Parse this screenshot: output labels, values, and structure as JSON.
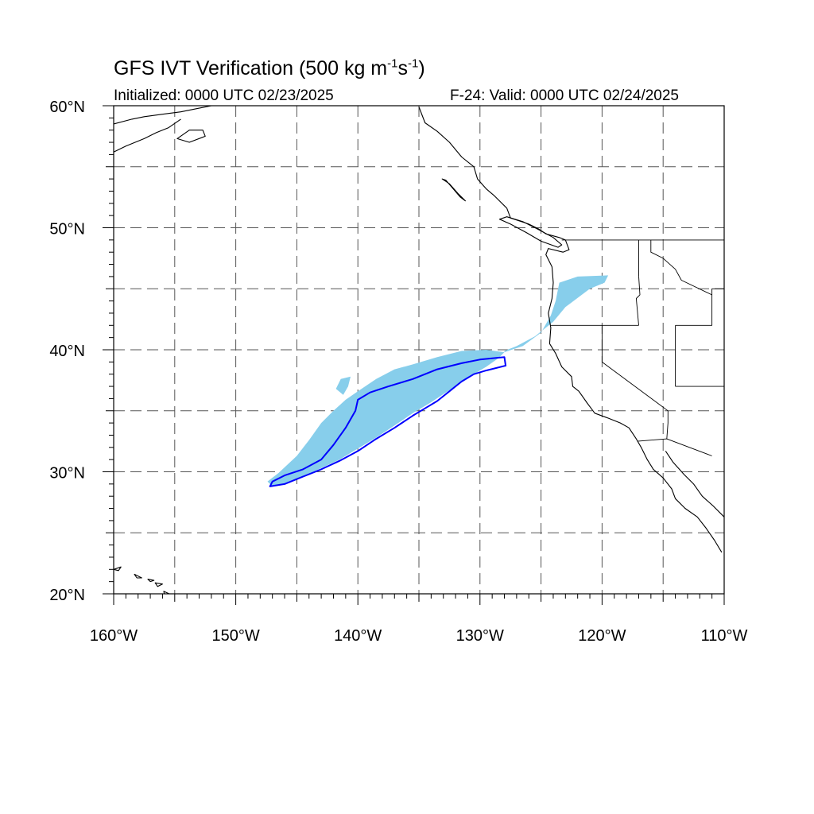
{
  "title": {
    "prefix": "GFS IVT Verification (500 kg m",
    "exp1": "-1",
    "mid": "s",
    "exp2": "-1",
    "suffix": ")"
  },
  "initialized": "Initialized: 0000 UTC 02/23/2025",
  "valid": "F-24: Valid: 0000 UTC 02/24/2025",
  "map": {
    "lon_range": [
      -160,
      -110
    ],
    "lat_range": [
      20,
      60
    ],
    "lon_labels": [
      "160°W",
      "150°W",
      "140°W",
      "130°W",
      "120°W",
      "110°W"
    ],
    "lat_labels": [
      "20°N",
      "30°N",
      "40°N",
      "50°N",
      "60°N"
    ],
    "grid_lons": [
      -155,
      -150,
      -145,
      -140,
      -135,
      -130,
      -125,
      -120,
      -115
    ],
    "grid_lats": [
      25,
      30,
      35,
      40,
      45,
      50,
      55
    ],
    "grid_style": "dashed",
    "forecast_fill_color": "#87CEEB",
    "observed_contour_color": "#0000FF",
    "coastline_color": "#000000",
    "forecast_object": [
      [
        -147.0,
        28.8
      ],
      [
        -146.0,
        29.0
      ],
      [
        -144.5,
        29.6
      ],
      [
        -143.0,
        30.3
      ],
      [
        -141.5,
        31.0
      ],
      [
        -140.0,
        31.9
      ],
      [
        -138.5,
        32.8
      ],
      [
        -137.0,
        33.8
      ],
      [
        -135.5,
        34.8
      ],
      [
        -134.0,
        35.7
      ],
      [
        -132.5,
        36.7
      ],
      [
        -131.0,
        37.7
      ],
      [
        -129.5,
        38.6
      ],
      [
        -128.5,
        39.3
      ],
      [
        -128.0,
        39.8
      ],
      [
        -129.5,
        40.0
      ],
      [
        -131.5,
        39.9
      ],
      [
        -133.5,
        39.4
      ],
      [
        -135.5,
        38.8
      ],
      [
        -137.0,
        38.4
      ],
      [
        -138.5,
        37.6
      ],
      [
        -140.0,
        36.6
      ],
      [
        -141.0,
        35.9
      ],
      [
        -142.0,
        35.0
      ],
      [
        -143.0,
        34.0
      ],
      [
        -144.0,
        32.6
      ],
      [
        -145.0,
        31.3
      ],
      [
        -146.5,
        29.9
      ],
      [
        -147.4,
        29.2
      ]
    ],
    "forecast_object_small": [
      [
        -141.2,
        36.3
      ],
      [
        -140.8,
        37.0
      ],
      [
        -140.6,
        37.8
      ],
      [
        -141.4,
        37.6
      ],
      [
        -141.8,
        36.8
      ]
    ],
    "forecast_object_coastal": [
      [
        -128.0,
        39.8
      ],
      [
        -126.5,
        40.3
      ],
      [
        -125.0,
        41.4
      ],
      [
        -124.2,
        42.8
      ],
      [
        -123.8,
        44.0
      ],
      [
        -123.5,
        45.5
      ],
      [
        -122.0,
        46.0
      ],
      [
        -119.5,
        46.1
      ],
      [
        -119.8,
        45.5
      ],
      [
        -121.0,
        45.0
      ],
      [
        -123.0,
        43.5
      ],
      [
        -124.0,
        42.3
      ],
      [
        -125.5,
        41.1
      ],
      [
        -127.0,
        40.3
      ],
      [
        -128.0,
        39.9
      ]
    ],
    "observed_contour": [
      [
        -147.0,
        29.2
      ],
      [
        -146.0,
        29.7
      ],
      [
        -144.5,
        30.2
      ],
      [
        -143.0,
        31.0
      ],
      [
        -142.0,
        32.2
      ],
      [
        -141.0,
        33.6
      ],
      [
        -140.2,
        35.0
      ],
      [
        -140.0,
        35.9
      ],
      [
        -139.0,
        36.5
      ],
      [
        -137.5,
        37.0
      ],
      [
        -135.5,
        37.6
      ],
      [
        -133.5,
        38.4
      ],
      [
        -131.5,
        38.9
      ],
      [
        -130.0,
        39.2
      ],
      [
        -128.0,
        39.4
      ],
      [
        -127.9,
        38.7
      ],
      [
        -129.5,
        38.3
      ],
      [
        -130.5,
        38.0
      ],
      [
        -131.5,
        37.4
      ],
      [
        -132.5,
        36.6
      ],
      [
        -133.5,
        35.8
      ],
      [
        -134.5,
        35.2
      ],
      [
        -135.5,
        34.6
      ],
      [
        -137.0,
        33.6
      ],
      [
        -138.5,
        32.7
      ],
      [
        -140.0,
        31.7
      ],
      [
        -141.5,
        30.9
      ],
      [
        -143.0,
        30.2
      ],
      [
        -144.5,
        29.6
      ],
      [
        -146.0,
        29.0
      ],
      [
        -147.2,
        28.8
      ]
    ],
    "coastline": [
      [
        -135.0,
        59.9
      ],
      [
        -134.5,
        58.6
      ],
      [
        -133.5,
        57.9
      ],
      [
        -132.5,
        57.0
      ],
      [
        -131.5,
        55.8
      ],
      [
        -130.5,
        55.0
      ],
      [
        -130.2,
        54.0
      ],
      [
        -129.5,
        53.2
      ],
      [
        -128.8,
        52.6
      ],
      [
        -127.8,
        51.6
      ],
      [
        -127.5,
        50.8
      ],
      [
        -126.0,
        50.3
      ],
      [
        -125.2,
        49.9
      ],
      [
        -124.6,
        49.5
      ],
      [
        -123.5,
        49.2
      ],
      [
        -123.0,
        49.0
      ],
      [
        -122.7,
        48.2
      ],
      [
        -123.2,
        48.0
      ],
      [
        -124.4,
        48.3
      ],
      [
        -124.6,
        47.8
      ],
      [
        -124.1,
        46.8
      ],
      [
        -124.0,
        45.5
      ],
      [
        -124.1,
        44.2
      ],
      [
        -124.4,
        43.0
      ],
      [
        -124.2,
        41.8
      ],
      [
        -124.3,
        40.5
      ],
      [
        -123.8,
        39.7
      ],
      [
        -123.3,
        38.6
      ],
      [
        -122.5,
        37.8
      ],
      [
        -122.4,
        37.0
      ],
      [
        -121.9,
        36.6
      ],
      [
        -121.2,
        35.6
      ],
      [
        -120.6,
        34.8
      ],
      [
        -119.5,
        34.4
      ],
      [
        -118.5,
        34.0
      ],
      [
        -117.8,
        33.6
      ],
      [
        -117.2,
        32.7
      ],
      [
        -116.8,
        32.0
      ],
      [
        -116.3,
        31.0
      ],
      [
        -115.8,
        30.2
      ],
      [
        -115.0,
        29.5
      ],
      [
        -114.3,
        28.6
      ],
      [
        -114.0,
        27.8
      ],
      [
        -113.2,
        27.0
      ],
      [
        -112.2,
        26.3
      ],
      [
        -111.5,
        25.4
      ],
      [
        -110.8,
        24.4
      ],
      [
        -110.2,
        23.4
      ]
    ],
    "vancouver_island": [
      [
        -128.4,
        50.7
      ],
      [
        -127.5,
        50.3
      ],
      [
        -126.2,
        49.6
      ],
      [
        -125.0,
        48.9
      ],
      [
        -123.6,
        48.4
      ],
      [
        -123.3,
        48.6
      ],
      [
        -124.0,
        49.2
      ],
      [
        -125.3,
        49.9
      ],
      [
        -126.5,
        50.5
      ],
      [
        -127.8,
        50.9
      ]
    ],
    "haida_gwaii": [
      [
        -133.1,
        54.0
      ],
      [
        -132.5,
        53.6
      ],
      [
        -131.8,
        52.8
      ],
      [
        -131.2,
        52.2
      ],
      [
        -131.6,
        52.5
      ],
      [
        -132.2,
        53.2
      ],
      [
        -132.8,
        53.9
      ]
    ],
    "alaska_coast": [
      [
        -160.0,
        58.5
      ],
      [
        -158.5,
        58.9
      ],
      [
        -157.5,
        59.1
      ],
      [
        -156.0,
        59.3
      ],
      [
        -154.5,
        59.5
      ],
      [
        -153.0,
        59.8
      ],
      [
        -152.0,
        60.0
      ]
    ],
    "alaska_coast2": [
      [
        -160.0,
        56.2
      ],
      [
        -159.0,
        56.7
      ],
      [
        -157.5,
        57.3
      ],
      [
        -156.5,
        57.8
      ],
      [
        -155.5,
        58.2
      ],
      [
        -154.5,
        58.9
      ]
    ],
    "kodiak": [
      [
        -154.8,
        57.3
      ],
      [
        -153.8,
        57.0
      ],
      [
        -152.5,
        57.5
      ],
      [
        -152.7,
        58.0
      ],
      [
        -153.8,
        58.0
      ]
    ],
    "gulf_california_east": [
      [
        -114.8,
        31.7
      ],
      [
        -114.2,
        30.8
      ],
      [
        -113.3,
        29.8
      ],
      [
        -112.5,
        29.0
      ],
      [
        -111.8,
        28.0
      ],
      [
        -110.9,
        27.2
      ],
      [
        -110.0,
        26.3
      ],
      [
        -109.3,
        25.4
      ]
    ],
    "hawaii": [
      [
        [
          -160.0,
          22.0
        ],
        [
          -159.4,
          22.2
        ],
        [
          -159.6,
          21.9
        ]
      ],
      [
        [
          -158.3,
          21.6
        ],
        [
          -157.7,
          21.3
        ],
        [
          -158.1,
          21.3
        ]
      ],
      [
        [
          -157.2,
          21.2
        ],
        [
          -156.7,
          21.1
        ],
        [
          -157.0,
          21.0
        ]
      ],
      [
        [
          -156.6,
          20.9
        ],
        [
          -156.0,
          20.8
        ],
        [
          -156.4,
          20.6
        ]
      ],
      [
        [
          -155.9,
          20.2
        ],
        [
          -155.0,
          19.8
        ],
        [
          -155.7,
          19.3
        ]
      ]
    ],
    "us_canada_border": [
      [
        -123.3,
        49.0
      ],
      [
        -110.0,
        49.0
      ]
    ],
    "state_borders": [
      [
        [
          -124.2,
          42.0
        ],
        [
          -117.0,
          42.0
        ]
      ],
      [
        [
          -117.0,
          46.0
        ],
        [
          -117.0,
          49.0
        ]
      ],
      [
        [
          -117.0,
          46.0
        ],
        [
          -116.9,
          44.5
        ],
        [
          -117.2,
          44.2
        ],
        [
          -117.0,
          42.0
        ]
      ],
      [
        [
          -120.0,
          42.0
        ],
        [
          -120.0,
          39.0
        ],
        [
          -114.6,
          35.0
        ]
      ],
      [
        [
          -114.0,
          42.0
        ],
        [
          -114.0,
          37.0
        ]
      ],
      [
        [
          -114.0,
          37.0
        ],
        [
          -110.0,
          37.0
        ]
      ],
      [
        [
          -114.0,
          42.0
        ],
        [
          -111.0,
          42.0
        ],
        [
          -111.0,
          45.0
        ],
        [
          -110.0,
          45.0
        ]
      ],
      [
        [
          -114.6,
          35.0
        ],
        [
          -114.6,
          34.0
        ],
        [
          -114.7,
          32.7
        ]
      ],
      [
        [
          -117.1,
          32.5
        ],
        [
          -114.7,
          32.7
        ],
        [
          -111.0,
          31.3
        ]
      ],
      [
        [
          -116.0,
          49.0
        ],
        [
          -116.0,
          48.0
        ],
        [
          -115.0,
          47.5
        ],
        [
          -114.0,
          46.6
        ],
        [
          -113.5,
          45.7
        ],
        [
          -111.0,
          44.5
        ]
      ]
    ]
  }
}
